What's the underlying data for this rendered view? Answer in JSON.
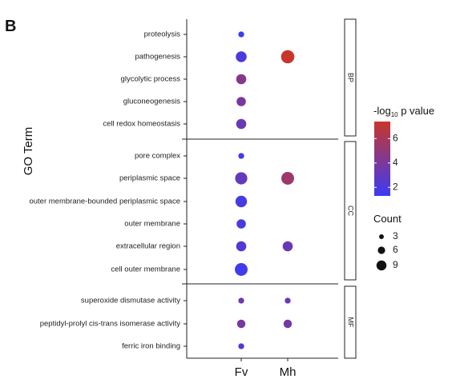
{
  "panel_label": "B",
  "chart_data": {
    "type": "scatter",
    "x_categories": [
      "Fv",
      "Mh"
    ],
    "ylabel": "GO Term",
    "facets": [
      "BP",
      "CC",
      "MF"
    ],
    "terms": [
      {
        "term": "proteolysis",
        "facet": "BP"
      },
      {
        "term": "pathogenesis",
        "facet": "BP"
      },
      {
        "term": "glycolytic process",
        "facet": "BP"
      },
      {
        "term": "gluconeogenesis",
        "facet": "BP"
      },
      {
        "term": "cell redox homeostasis",
        "facet": "BP"
      },
      {
        "term": "pore complex",
        "facet": "CC"
      },
      {
        "term": "periplasmic space",
        "facet": "CC"
      },
      {
        "term": "outer membrane-bounded periplasmic space",
        "facet": "CC"
      },
      {
        "term": "outer membrane",
        "facet": "CC"
      },
      {
        "term": "extracellular region",
        "facet": "CC"
      },
      {
        "term": "cell outer membrane",
        "facet": "CC"
      },
      {
        "term": "superoxide dismutase activity",
        "facet": "MF"
      },
      {
        "term": "peptidyl-prolyl cis-trans isomerase activity",
        "facet": "MF"
      },
      {
        "term": "ferric iron binding",
        "facet": "MF"
      }
    ],
    "points": [
      {
        "term": "proteolysis",
        "group": "Fv",
        "count": 1,
        "neg_log10_p": 1.3
      },
      {
        "term": "pathogenesis",
        "group": "Fv",
        "count": 6,
        "neg_log10_p": 2.0
      },
      {
        "term": "pathogenesis",
        "group": "Mh",
        "count": 10,
        "neg_log10_p": 7.4
      },
      {
        "term": "glycolytic process",
        "group": "Fv",
        "count": 5,
        "neg_log10_p": 4.5
      },
      {
        "term": "gluconeogenesis",
        "group": "Fv",
        "count": 4,
        "neg_log10_p": 4.0
      },
      {
        "term": "cell redox homeostasis",
        "group": "Fv",
        "count": 5,
        "neg_log10_p": 3.3
      },
      {
        "term": "pore complex",
        "group": "Fv",
        "count": 1,
        "neg_log10_p": 1.6
      },
      {
        "term": "periplasmic space",
        "group": "Fv",
        "count": 8,
        "neg_log10_p": 3.0
      },
      {
        "term": "periplasmic space",
        "group": "Mh",
        "count": 9,
        "neg_log10_p": 5.5
      },
      {
        "term": "outer membrane-bounded periplasmic space",
        "group": "Fv",
        "count": 7,
        "neg_log10_p": 1.8
      },
      {
        "term": "outer membrane",
        "group": "Fv",
        "count": 4,
        "neg_log10_p": 2.0
      },
      {
        "term": "extracellular region",
        "group": "Fv",
        "count": 5,
        "neg_log10_p": 2.3
      },
      {
        "term": "extracellular region",
        "group": "Mh",
        "count": 5,
        "neg_log10_p": 3.3
      },
      {
        "term": "cell outer membrane",
        "group": "Fv",
        "count": 9,
        "neg_log10_p": 1.5
      },
      {
        "term": "superoxide dismutase activity",
        "group": "Fv",
        "count": 1,
        "neg_log10_p": 3.4
      },
      {
        "term": "superoxide dismutase activity",
        "group": "Mh",
        "count": 1,
        "neg_log10_p": 3.1
      },
      {
        "term": "peptidyl-prolyl cis-trans isomerase activity",
        "group": "Fv",
        "count": 3,
        "neg_log10_p": 4.0
      },
      {
        "term": "peptidyl-prolyl cis-trans isomerase activity",
        "group": "Mh",
        "count": 3,
        "neg_log10_p": 3.8
      },
      {
        "term": "ferric iron binding",
        "group": "Fv",
        "count": 1,
        "neg_log10_p": 2.0
      }
    ],
    "color_scale": {
      "title_prefix": "-log",
      "title_sub": "10",
      "title_suffix": " p value",
      "low_color": "#3b3bf5",
      "high_color": "#c8362b",
      "range": [
        1.3,
        7.4
      ],
      "ticks": [
        2,
        4,
        6
      ]
    },
    "size_scale": {
      "title": "Count",
      "breaks": [
        3,
        6,
        9
      ]
    }
  }
}
